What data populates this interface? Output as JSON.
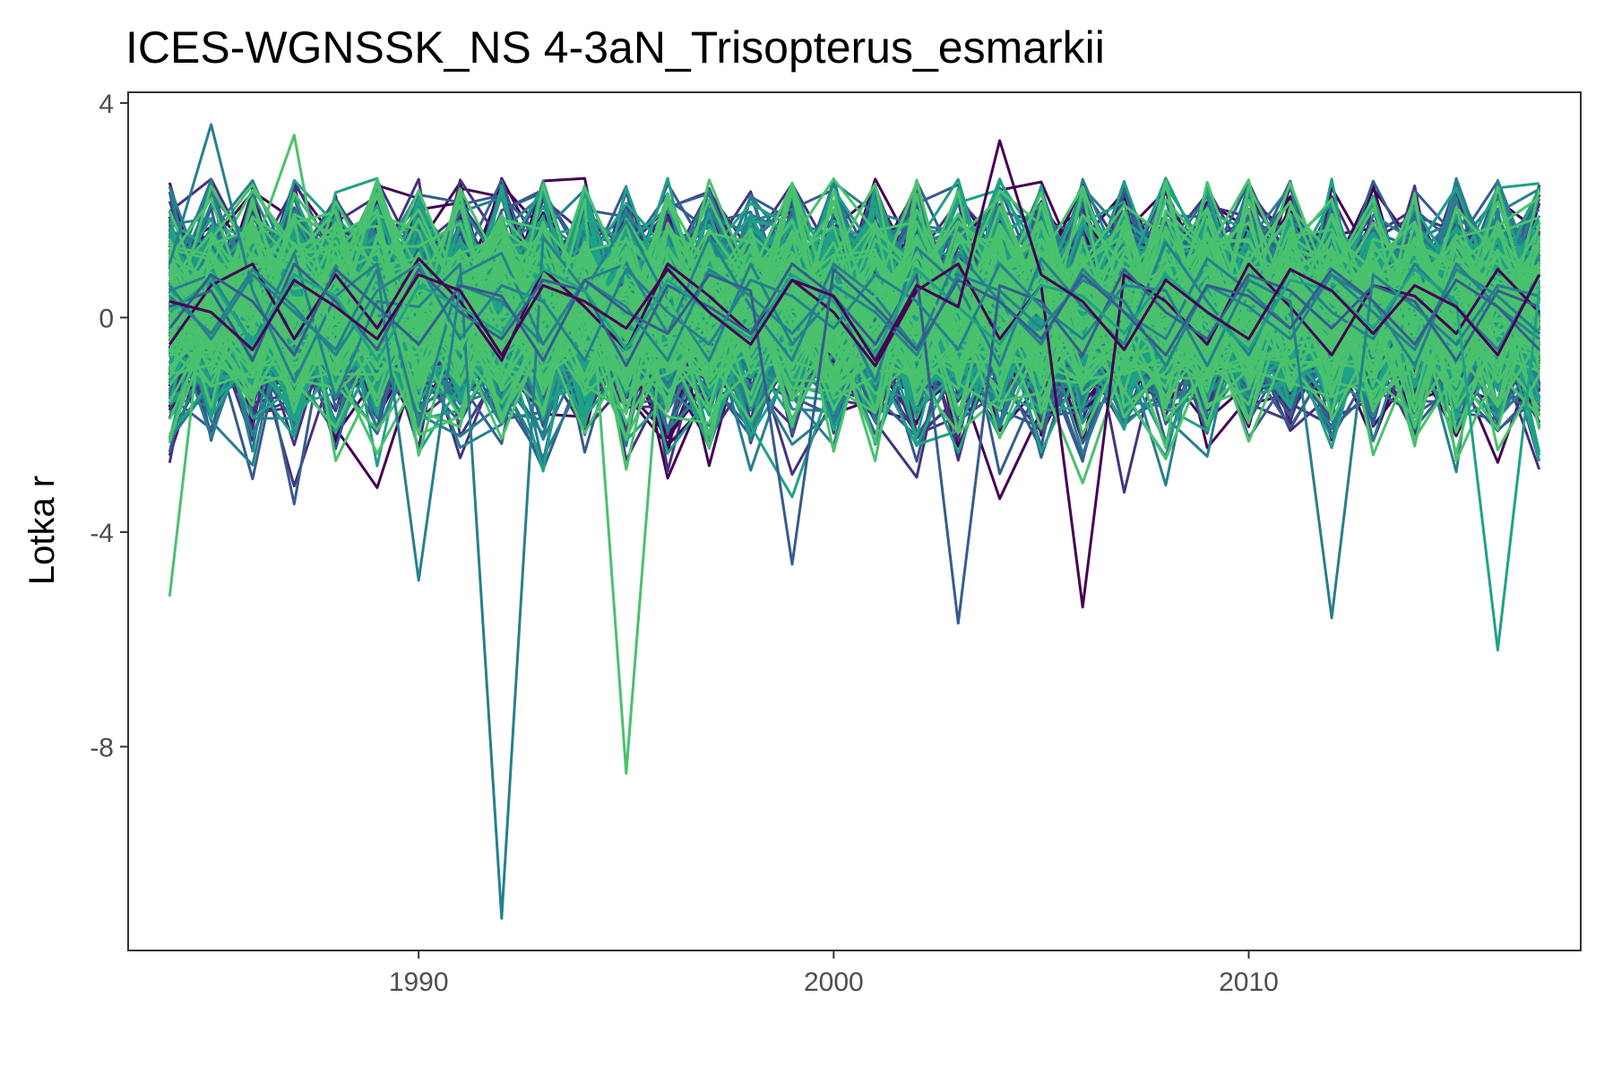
{
  "chart_data": {
    "type": "line",
    "title": "ICES-WGNSSK_NS 4-3aN_Trisopterus_esmarkii",
    "xlabel": "",
    "ylabel": "Lotka r",
    "xlim": [
      1983,
      2018
    ],
    "ylim": [
      -11.8,
      4.2
    ],
    "x_ticks": [
      1990,
      2000,
      2010
    ],
    "x_tick_labels": [
      "1990",
      "2000",
      "2010"
    ],
    "y_ticks": [
      4,
      0,
      -4,
      -8
    ],
    "y_tick_labels": [
      "4",
      "0",
      "-4",
      "-8"
    ],
    "grid": false,
    "legend": "none",
    "colors": [
      "#440154",
      "#46327e",
      "#365c8d",
      "#277f8e",
      "#1fa187",
      "#4ac16d"
    ],
    "x": [
      1984,
      1985,
      1986,
      1987,
      1988,
      1989,
      1990,
      1991,
      1992,
      1993,
      1994,
      1995,
      1996,
      1997,
      1998,
      1999,
      2000,
      2001,
      2002,
      2003,
      2004,
      2005,
      2006,
      2007,
      2008,
      2009,
      2010,
      2011,
      2012,
      2013,
      2014,
      2015,
      2016,
      2017
    ],
    "ensemble_size": 400,
    "series": [
      {
        "color": "#277f8e",
        "values": [
          0.5,
          0.8,
          -0.5,
          1.2,
          -1.5,
          0.3,
          0.2,
          1.0,
          -11.2,
          1.5,
          0.5,
          1.8,
          0.3,
          -0.8,
          1.0,
          -0.5,
          0.4,
          -1.2,
          1.3,
          0.6,
          -0.9,
          1.1,
          0.2,
          -0.5,
          1.4,
          0.3,
          -0.7,
          0.9,
          0.1,
          -0.4,
          1.0,
          0.2,
          -0.6,
          0.8
        ]
      },
      {
        "color": "#4ac16d",
        "values": [
          -5.2,
          1.5,
          0.2,
          -1.0,
          0.8,
          1.2,
          -0.3,
          0.5,
          1.1,
          -0.8,
          2.2,
          -8.5,
          1.3,
          0.2,
          -0.5,
          1.0,
          0.6,
          -0.4,
          1.2,
          -0.2,
          0.8,
          0.3,
          -0.6,
          1.1,
          0.4,
          -0.9,
          0.7,
          0.2,
          -0.3,
          0.9,
          0.5,
          -0.2,
          0.6,
          0.1
        ]
      },
      {
        "color": "#277f8e",
        "values": [
          1.0,
          3.6,
          0.5,
          -1.2,
          0.4,
          1.0,
          -2.0,
          0.8,
          1.2,
          -0.5,
          0.7,
          1.0,
          -0.3,
          1.5,
          0.2,
          -0.8,
          1.0,
          0.4,
          -0.6,
          1.2,
          0.3,
          -0.5,
          0.9,
          0.1,
          -0.4,
          1.1,
          0.5,
          -0.2,
          0.8,
          0.3,
          -0.9,
          1.0,
          0.2,
          -0.4
        ]
      },
      {
        "color": "#4ac16d",
        "values": [
          0.3,
          -1.0,
          1.2,
          3.4,
          -0.8,
          0.5,
          1.0,
          -0.6,
          0.9,
          0.2,
          -0.4,
          1.1,
          0.3,
          -0.9,
          0.6,
          1.0,
          -0.3,
          0.4,
          0.8,
          -0.5,
          1.2,
          0.1,
          -0.7,
          0.5,
          0.9,
          -0.2,
          0.6,
          1.0,
          -0.4,
          0.3,
          0.7,
          -0.6,
          0.4,
          0.2
        ]
      },
      {
        "color": "#440154",
        "values": [
          -0.5,
          0.6,
          1.0,
          -0.4,
          0.8,
          -0.2,
          1.1,
          0.3,
          -0.8,
          0.9,
          0.2,
          -0.6,
          1.0,
          0.4,
          -0.3,
          0.7,
          0.1,
          -0.9,
          0.5,
          1.0,
          -0.4,
          0.6,
          -5.4,
          0.8,
          0.3,
          -0.5,
          1.0,
          0.2,
          -0.7,
          0.6,
          0.4,
          -0.3,
          0.9,
          0.1
        ]
      },
      {
        "color": "#365c8d",
        "values": [
          0.2,
          0.5,
          -0.8,
          1.0,
          0.3,
          -0.6,
          0.9,
          0.1,
          -0.4,
          0.7,
          0.5,
          -0.9,
          0.6,
          0.2,
          -0.3,
          1.0,
          0.4,
          -0.5,
          0.8,
          -5.7,
          0.6,
          0.3,
          -0.7,
          0.9,
          0.1,
          -0.4,
          0.8,
          0.5,
          -0.2,
          0.6,
          0.3,
          -0.8,
          0.5,
          0.2
        ]
      },
      {
        "color": "#277f8e",
        "values": [
          0.4,
          -0.3,
          0.9,
          0.2,
          -0.7,
          0.5,
          1.0,
          -0.4,
          0.6,
          0.3,
          -0.8,
          0.9,
          0.1,
          -0.5,
          0.7,
          0.4,
          -0.2,
          0.8,
          0.3,
          -0.6,
          1.0,
          0.2,
          -0.4,
          0.6,
          0.5,
          -0.9,
          0.7,
          0.3,
          -5.6,
          0.8,
          0.2,
          -0.5,
          0.6,
          0.4
        ]
      },
      {
        "color": "#1fa187",
        "values": [
          0.1,
          0.7,
          -0.5,
          0.8,
          0.4,
          -0.8,
          0.6,
          0.2,
          -0.3,
          0.9,
          0.5,
          -0.6,
          0.7,
          0.1,
          -0.4,
          0.8,
          0.3,
          -0.7,
          0.9,
          0.2,
          -0.5,
          0.6,
          0.4,
          -0.3,
          0.8,
          0.1,
          -0.6,
          0.7,
          0.5,
          -0.2,
          0.9,
          0.3,
          -6.2,
          0.5
        ]
      },
      {
        "color": "#277f8e",
        "values": [
          0.6,
          -0.4,
          0.8,
          0.1,
          -0.6,
          0.9,
          -4.9,
          0.6,
          0.3,
          -0.5,
          0.7,
          0.2,
          -0.8,
          0.9,
          0.4,
          -0.3,
          0.6,
          0.1,
          -0.7,
          0.8,
          0.5,
          -0.2,
          0.7,
          0.3,
          -0.9,
          0.6,
          0.2,
          -0.4,
          0.8,
          0.1,
          -0.6,
          0.9,
          0.4,
          -0.3
        ]
      },
      {
        "color": "#365c8d",
        "values": [
          -0.2,
          0.8,
          0.3,
          -0.7,
          0.9,
          0.2,
          -0.5,
          0.6,
          0.4,
          -0.8,
          0.7,
          0.1,
          -0.3,
          0.8,
          0.5,
          -4.6,
          0.9,
          0.2,
          -0.6,
          0.7,
          0.3,
          -0.4,
          0.8,
          0.1,
          -0.7,
          0.6,
          0.4,
          -0.2,
          0.9,
          0.3,
          -0.5,
          0.7,
          0.2,
          -0.6
        ]
      },
      {
        "color": "#440154",
        "values": [
          0.3,
          0.1,
          -0.6,
          0.7,
          0.2,
          -0.4,
          0.8,
          0.5,
          -0.7,
          0.6,
          0.3,
          -0.2,
          0.9,
          0.1,
          -0.5,
          0.7,
          0.4,
          -0.8,
          0.6,
          0.2,
          3.3,
          0.8,
          0.3,
          -0.6,
          0.7,
          0.1,
          -0.4,
          0.9,
          0.5,
          -0.3,
          0.6,
          0.2,
          -0.7,
          0.8
        ]
      }
    ]
  }
}
